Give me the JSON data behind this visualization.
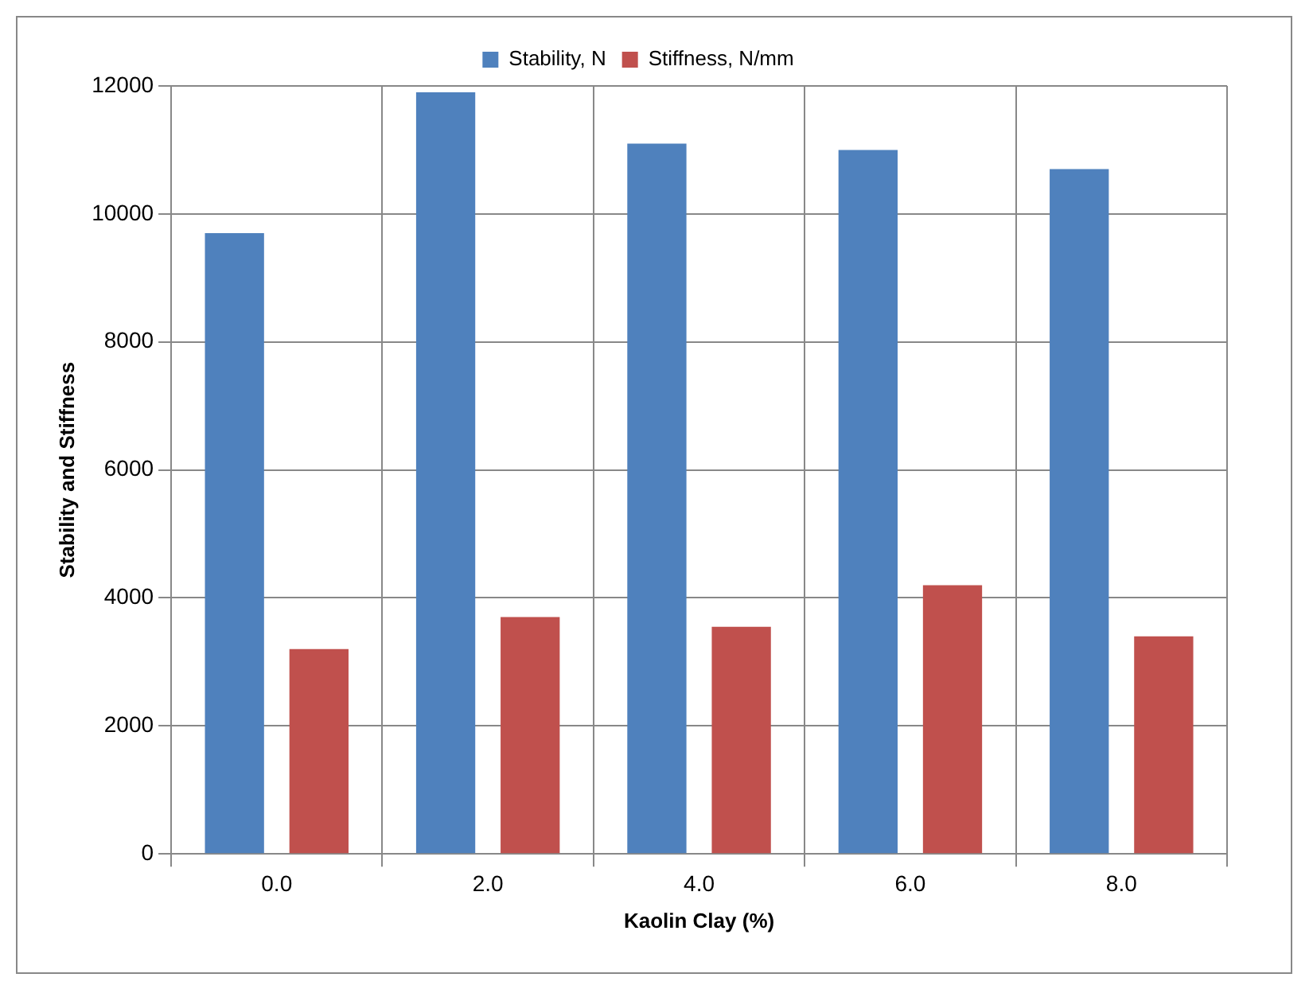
{
  "chart_data": {
    "type": "bar",
    "xlabel": "Kaolin Clay (%)",
    "ylabel": "Stability and Stiffness",
    "categories": [
      "0.0",
      "2.0",
      "4.0",
      "6.0",
      "8.0"
    ],
    "series": [
      {
        "name": "Stability, N",
        "color": "#4f81bd",
        "values": [
          9700,
          11900,
          11100,
          11000,
          10700
        ]
      },
      {
        "name": "Stiffness, N/mm",
        "color": "#c0504d",
        "values": [
          3200,
          3700,
          3550,
          4200,
          3400
        ]
      }
    ],
    "ylim": [
      0,
      12000
    ],
    "yticks": [
      0,
      2000,
      4000,
      6000,
      8000,
      10000,
      12000
    ],
    "grid": true,
    "legend": "top"
  }
}
